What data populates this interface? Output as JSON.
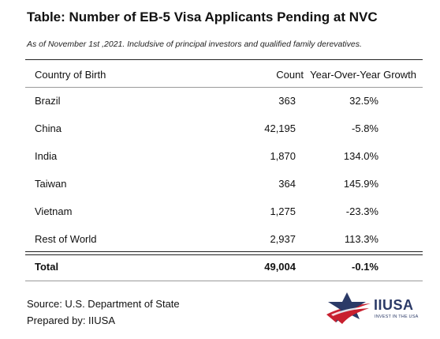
{
  "title": "Table: Number of EB-5 Visa Applicants Pending at NVC",
  "subtitle": "As of November 1st ,2021. Includsive of principal investors and qualified family derevatives.",
  "table": {
    "headers": {
      "country": "Country of Birth",
      "count": "Count",
      "growth": "Year-Over-Year Growth"
    },
    "rows": [
      {
        "country": "Brazil",
        "count": "363",
        "growth": "32.5%"
      },
      {
        "country": "China",
        "count": "42,195",
        "growth": "-5.8%"
      },
      {
        "country": "India",
        "count": "1,870",
        "growth": "134.0%"
      },
      {
        "country": "Taiwan",
        "count": "364",
        "growth": "145.9%"
      },
      {
        "country": "Vietnam",
        "count": "1,275",
        "growth": "-23.3%"
      },
      {
        "country": "Rest of World",
        "count": "2,937",
        "growth": "113.3%"
      }
    ],
    "total": {
      "country": "Total",
      "count": "49,004",
      "growth": "-0.1%"
    }
  },
  "footer": {
    "source": "Source: U.S. Department of State",
    "prepared": "Prepared by: IIUSA"
  },
  "logo": {
    "text": "IIUSA",
    "tagline": "INVEST IN THE USA",
    "colors": {
      "navy": "#2b3a67",
      "red": "#c8202f"
    }
  }
}
